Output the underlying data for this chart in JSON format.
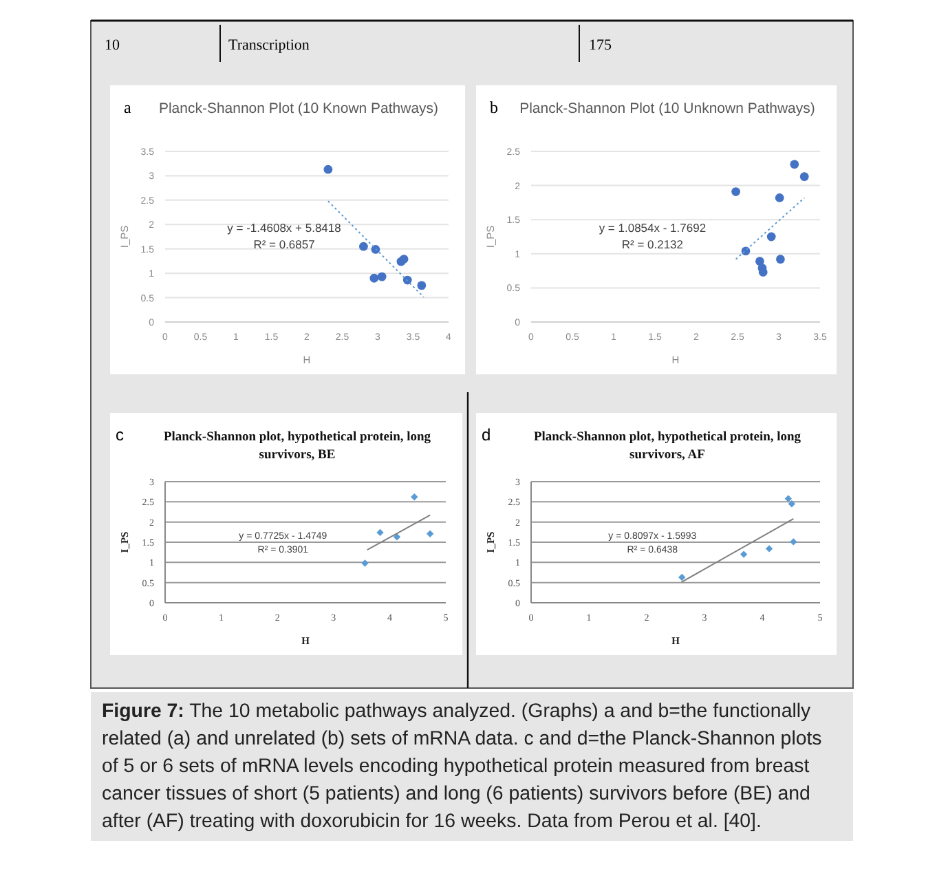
{
  "chart_data": [
    {
      "type": "scatter",
      "title": "Planck-Shannon Plot (10 Known Pathways)",
      "xlabel": "H",
      "ylabel": "I_PS",
      "xlim": [
        0,
        4
      ],
      "xticks": [
        0,
        0.5,
        1,
        1.5,
        2,
        2.5,
        3,
        3.5,
        4
      ],
      "ylim": [
        0,
        3.5
      ],
      "yticks": [
        0,
        0.5,
        1,
        1.5,
        2,
        2.5,
        3,
        3.5
      ],
      "grid": "y",
      "annotations": [
        "a",
        "y = -1.4608x + 5.8418",
        "R² = 0.6857",
        "10",
        "Transcription",
        "175"
      ],
      "series": [
        {
          "type": "scatter",
          "color": "#4472c4",
          "marker": "circle",
          "x": [
            2.3,
            2.8,
            2.97,
            2.95,
            3.06,
            3.33,
            3.37,
            3.42,
            3.62
          ],
          "values": [
            3.13,
            1.55,
            1.49,
            0.9,
            0.93,
            1.24,
            1.29,
            0.86,
            0.75
          ]
        },
        {
          "type": "line",
          "color": "#5b9bd5",
          "line_style": "dotted",
          "x": [
            2.3,
            3.65
          ],
          "values": [
            2.48,
            0.51
          ]
        }
      ]
    },
    {
      "type": "scatter",
      "title": "Planck-Shannon Plot (10 Unknown Pathways)",
      "xlabel": "H",
      "ylabel": "I_PS",
      "xlim": [
        0,
        3.5
      ],
      "xticks": [
        0,
        0.5,
        1,
        1.5,
        2,
        2.5,
        3,
        3.5
      ],
      "ylim": [
        0,
        2.5
      ],
      "yticks": [
        0,
        0.5,
        1,
        1.5,
        2,
        2.5
      ],
      "grid": "y",
      "annotations": [
        "b",
        "y = 1.0854x - 1.7692",
        "R² = 0.2132"
      ],
      "series": [
        {
          "type": "scatter",
          "color": "#4472c4",
          "marker": "circle",
          "x": [
            2.48,
            2.6,
            2.77,
            2.8,
            2.81,
            2.91,
            3.01,
            3.02,
            3.19,
            3.31
          ],
          "values": [
            1.91,
            1.04,
            0.89,
            0.79,
            0.73,
            1.25,
            1.82,
            0.92,
            2.31,
            2.13
          ]
        },
        {
          "type": "line",
          "color": "#5b9bd5",
          "line_style": "dotted",
          "x": [
            2.48,
            3.31
          ],
          "values": [
            0.92,
            1.82
          ]
        }
      ]
    },
    {
      "type": "scatter",
      "title": "Planck-Shannon plot, hypothetical  protein, long survivors, BE",
      "xlabel": "H",
      "ylabel": "I_PS",
      "xlim": [
        0,
        5
      ],
      "xticks": [
        0,
        1,
        2,
        3,
        4,
        5
      ],
      "ylim": [
        0,
        3
      ],
      "yticks": [
        0,
        0.5,
        1,
        1.5,
        2,
        2.5,
        3
      ],
      "grid": "y",
      "annotations": [
        "c",
        "y = 0.7725x - 1.4749",
        "R² = 0.3901"
      ],
      "series": [
        {
          "type": "scatter",
          "color": "#5b9bd5",
          "marker": "diamond",
          "x": [
            3.56,
            3.83,
            4.13,
            4.44,
            4.72
          ],
          "values": [
            0.98,
            1.74,
            1.63,
            2.62,
            1.71
          ]
        },
        {
          "type": "line",
          "color": "#808080",
          "line_style": "solid",
          "x": [
            3.6,
            4.72
          ],
          "values": [
            1.31,
            2.17
          ]
        }
      ]
    },
    {
      "type": "scatter",
      "title": "Planck-Shannon plot, hypothetical protein, long survivors, AF",
      "xlabel": "H",
      "ylabel": "I_PS",
      "xlim": [
        0,
        5
      ],
      "xticks": [
        0,
        1,
        2,
        3,
        4,
        5
      ],
      "ylim": [
        0,
        3
      ],
      "yticks": [
        0,
        0.5,
        1,
        1.5,
        2,
        2.5,
        3
      ],
      "grid": "y",
      "annotations": [
        "d",
        "y = 0.8097x - 1.5993",
        "R² = 0.6438",
        "Figure 7: The 10 metabolic pathways analyzed. (Graphs) a and b=the functionally related (a) and unrelated (b) sets of mRNA data. c and d=the Planck-Shannon plots of 5 or 6 sets of mRNA levels encoding hypothetical protein measured from breast cancer tissues of short (5 patients) and long (6 patients) survivors before (BE) and after (AF) treating with doxorubicin for 16 weeks.  Data from Perou et al. [40]."
      ],
      "series": [
        {
          "type": "scatter",
          "color": "#5b9bd5",
          "marker": "diamond",
          "x": [
            2.61,
            3.68,
            4.12,
            4.45,
            4.51,
            4.54
          ],
          "values": [
            0.63,
            1.2,
            1.34,
            2.58,
            2.45,
            1.51
          ]
        },
        {
          "type": "line",
          "color": "#808080",
          "line_style": "solid",
          "x": [
            2.6,
            4.54
          ],
          "values": [
            0.51,
            2.08
          ]
        }
      ]
    }
  ]
}
